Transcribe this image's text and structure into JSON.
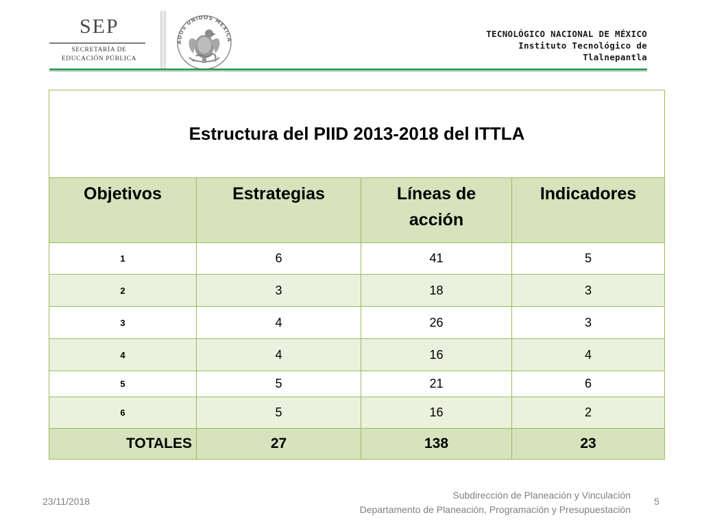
{
  "header": {
    "sep_logo": {
      "word": "SEP",
      "line1": "SECRETARÍA DE",
      "line2": "EDUCACIÓN PÚBLICA"
    },
    "seal_text": "ESTADOS UNIDOS MEXICANOS",
    "institution": {
      "line1": "TECNOLÓGICO NACIONAL DE MÉXICO",
      "line2": "Instituto Tecnológico de",
      "line3": "Tlalnepantla"
    },
    "accent_color": "#2e9e57"
  },
  "table": {
    "title": "Estructura del PIID 2013-2018 del ITTLA",
    "columns": [
      "Objetivos",
      "Estrategias",
      "Líneas de acción",
      "Indicadores"
    ],
    "rows": [
      {
        "objetivo": "1",
        "estrategias": "6",
        "lineas": "41",
        "indicadores": "5"
      },
      {
        "objetivo": "2",
        "estrategias": "3",
        "lineas": "18",
        "indicadores": "3"
      },
      {
        "objetivo": "3",
        "estrategias": "4",
        "lineas": "26",
        "indicadores": "3"
      },
      {
        "objetivo": "4",
        "estrategias": "4",
        "lineas": "16",
        "indicadores": "4"
      },
      {
        "objetivo": "5",
        "estrategias": "5",
        "lineas": "21",
        "indicadores": "6"
      },
      {
        "objetivo": "6",
        "estrategias": "5",
        "lineas": "16",
        "indicadores": "2"
      }
    ],
    "totals": {
      "label": "TOTALES",
      "estrategias": "27",
      "lineas": "138",
      "indicadores": "23"
    },
    "header_fill": "#d6e3bc",
    "alt_row_fill": "#ebf1de",
    "border_color": "#9bbb59"
  },
  "footer": {
    "date": "23/11/2018",
    "line1": "Subdirección de Planeación y Vinculación",
    "line2": "Departamento de Planeación, Programación y Presupuestación",
    "page_number": "5"
  }
}
